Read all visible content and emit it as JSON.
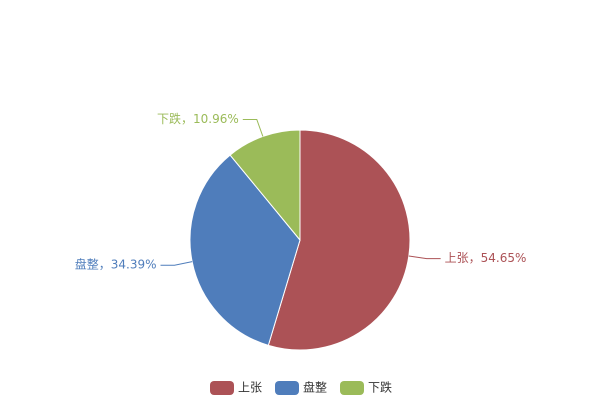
{
  "chart_data": {
    "type": "pie",
    "categories": [
      "上张",
      "盘整",
      "下跌"
    ],
    "values": [
      54.65,
      34.39,
      10.96
    ],
    "value_labels": [
      "上张，54.65%",
      "盘整，34.39%",
      "下跌，10.96%"
    ],
    "colors": [
      "#ac5256",
      "#4f7dbb",
      "#9bbb59"
    ]
  }
}
